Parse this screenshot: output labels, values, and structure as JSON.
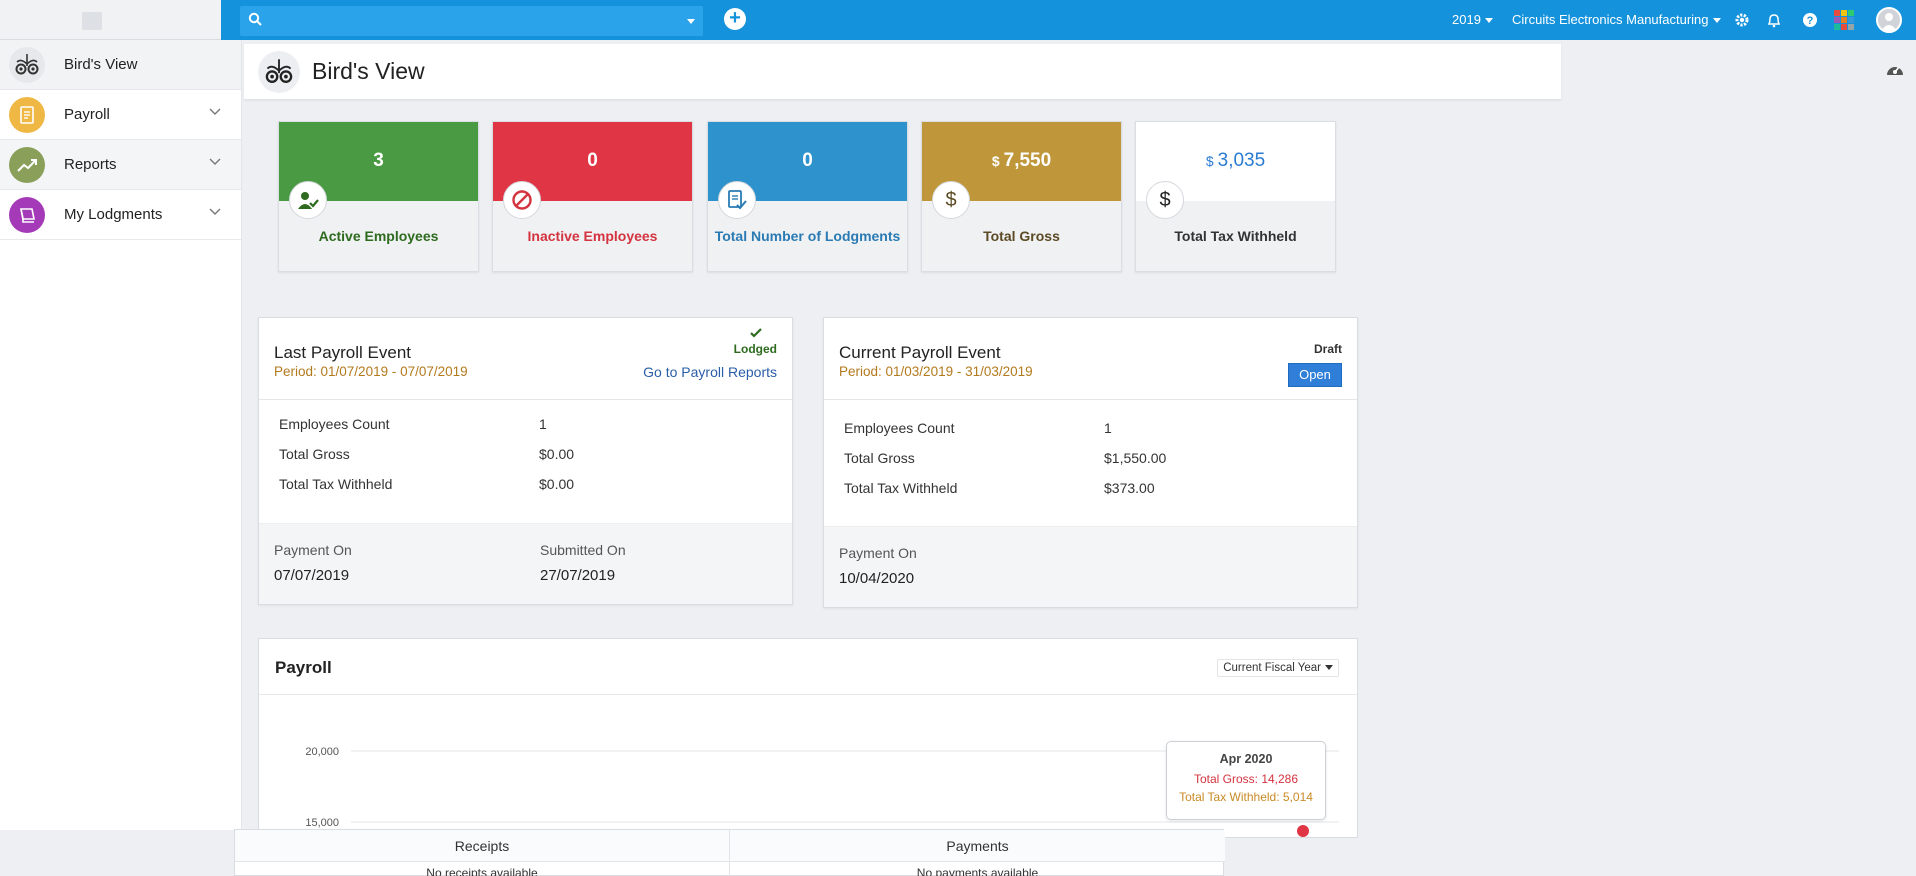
{
  "topbar": {
    "year": "2019",
    "company": "Circuits Electronics Manufacturing",
    "search_placeholder": "",
    "add_label": "+"
  },
  "sidebar": {
    "items": [
      {
        "label": "Bird's View",
        "icon": "owl-icon",
        "color": "#e6e8eb"
      },
      {
        "label": "Payroll",
        "icon": "document-icon",
        "color": "#efb743"
      },
      {
        "label": "Reports",
        "icon": "chart-line-icon",
        "color": "#8aa05a"
      },
      {
        "label": "My Lodgments",
        "icon": "book-icon",
        "color": "#a43ab8"
      }
    ]
  },
  "page": {
    "title": "Bird's View"
  },
  "stats": [
    {
      "value": "3",
      "currency": "",
      "label": "Active Employees",
      "color": "#4a9a43",
      "text": "#2e6b1f"
    },
    {
      "value": "0",
      "currency": "",
      "label": "Inactive Employees",
      "color": "#df3545",
      "text": "#d3343f"
    },
    {
      "value": "0",
      "currency": "",
      "label": "Total Number of Lodgments",
      "color": "#2e92cc",
      "text": "#2a7bb4"
    },
    {
      "value": "7,550",
      "currency": "$",
      "label": "Total Gross",
      "color": "#bf963a",
      "text": "#5b4a23"
    },
    {
      "value": "3,035",
      "currency": "$",
      "label": "Total Tax Withheld",
      "color": "#ffffff",
      "text": "#333333"
    }
  ],
  "last_event": {
    "title": "Last Payroll Event",
    "period": "Period: 01/07/2019 - 07/07/2019",
    "status": "Lodged",
    "link": "Go to Payroll Reports",
    "rows": [
      [
        "Employees Count",
        "1"
      ],
      [
        "Total Gross",
        "$0.00"
      ],
      [
        "Total Tax Withheld",
        "$0.00"
      ]
    ],
    "payment_label": "Payment On",
    "payment_value": "07/07/2019",
    "submitted_label": "Submitted On",
    "submitted_value": "27/07/2019"
  },
  "current_event": {
    "title": "Current Payroll Event",
    "period": "Period: 01/03/2019 - 31/03/2019",
    "status": "Draft",
    "button": "Open",
    "rows": [
      [
        "Employees Count",
        "1"
      ],
      [
        "Total Gross",
        "$1,550.00"
      ],
      [
        "Total Tax Withheld",
        "$373.00"
      ]
    ],
    "payment_label": "Payment On",
    "payment_value": "10/04/2020"
  },
  "payroll_chart": {
    "title": "Payroll",
    "selector": "Current Fiscal Year",
    "tooltip": {
      "title": "Apr 2020",
      "gross": "Total Gross: 14,286",
      "tax": "Total Tax Withheld: 5,014"
    }
  },
  "chart_data": {
    "type": "line",
    "title": "Payroll",
    "y_ticks": [
      "20,000",
      "15,000"
    ],
    "series": [
      {
        "name": "Total Gross",
        "color": "#d3343f"
      },
      {
        "name": "Total Tax Withheld",
        "color": "#c98a26"
      }
    ],
    "points": [
      {
        "x": "Apr 2020",
        "Total Gross": 14286,
        "Total Tax Withheld": 5014
      }
    ]
  },
  "bottom": {
    "receipts": "Receipts",
    "payments": "Payments",
    "no_receipts": "No receipts available",
    "no_payments": "No payments available"
  }
}
